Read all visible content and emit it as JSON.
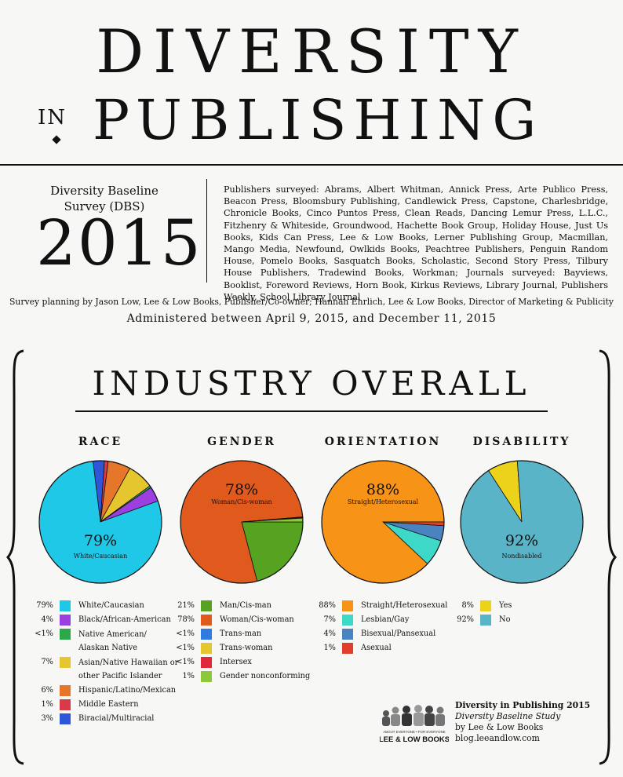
{
  "header": {
    "title_line1": "DIVERSITY",
    "title_in": "IN",
    "title_line2": "PUBLISHING",
    "survey_name": "Diversity Baseline Survey (DBS)",
    "year": "2015",
    "publishers_text": "Publishers surveyed: Abrams, Albert Whitman, Annick Press, Arte Publico Press, Beacon Press, Bloomsbury Publishing, Candlewick Press, Capstone, Charlesbridge, Chronicle Books, Cinco Puntos Press, Clean Reads, Dancing Lemur Press, L.L.C., Fitzhenry & Whiteside, Groundwood, Hachette Book Group, Holiday House, Just Us Books, Kids Can Press, Lee & Low Books, Lerner Publishing Group, Macmillan, Mango Media, Newfound, Owlkids Books, Peachtree Publishers, Penguin Random House, Pomelo Books, Sasquatch Books, Scholastic, Second Story Press, Tilbury House Publishers, Tradewind Books, Workman; Journals surveyed: Bayviews, Booklist, Foreword Reviews, Horn Book, Kirkus Reviews, Library Journal, Publishers Weekly, School Library Journal",
    "planning": "Survey planning by Jason Low, Lee & Low Books, Publisher/Co-owner; Hannah Ehrlich, Lee & Low Books, Director of Marketing & Publicity",
    "administered": "Administered between April 9, 2015, and December 11, 2015"
  },
  "section_title": "INDUSTRY OVERALL",
  "chart_data": [
    {
      "type": "pie",
      "title": "RACE",
      "center_value": "79%",
      "center_label": "White/Caucasian",
      "slices": [
        {
          "label": "White/Caucasian",
          "value": 79,
          "display": "79%",
          "color": "#1ec8e6"
        },
        {
          "label": "Black/African-American",
          "value": 4,
          "display": "4%",
          "color": "#9b3fe0"
        },
        {
          "label": "Native American/ Alaskan Native",
          "value": 0.5,
          "display": "<1%",
          "color": "#2aa84a"
        },
        {
          "label": "Asian/Native Hawaiian or other Pacific Islander",
          "value": 7,
          "display": "7%",
          "color": "#e6c62e"
        },
        {
          "label": "Hispanic/Latino/Mexican",
          "value": 6,
          "display": "6%",
          "color": "#e5762a"
        },
        {
          "label": "Middle Eastern",
          "value": 1,
          "display": "1%",
          "color": "#d83a4a"
        },
        {
          "label": "Biracial/Multiracial",
          "value": 3,
          "display": "3%",
          "color": "#2f56d8"
        }
      ]
    },
    {
      "type": "pie",
      "title": "GENDER",
      "center_value": "78%",
      "center_label": "Woman/Cis-woman",
      "slices": [
        {
          "label": "Man/Cis-man",
          "value": 21,
          "display": "21%",
          "color": "#55a320"
        },
        {
          "label": "Woman/Cis-woman",
          "value": 78,
          "display": "78%",
          "color": "#e05a1e"
        },
        {
          "label": "Trans-man",
          "value": 0.1,
          "display": "<1%",
          "color": "#2f7be0"
        },
        {
          "label": "Trans-woman",
          "value": 0.1,
          "display": "<1%",
          "color": "#e6c62e"
        },
        {
          "label": "Intersex",
          "value": 0.1,
          "display": "<1%",
          "color": "#e0283a"
        },
        {
          "label": "Gender nonconforming",
          "value": 1,
          "display": "1%",
          "color": "#8cc83a"
        }
      ]
    },
    {
      "type": "pie",
      "title": "ORIENTATION",
      "center_value": "88%",
      "center_label": "Straight/Heterosexual",
      "slices": [
        {
          "label": "Straight/Heterosexual",
          "value": 88,
          "display": "88%",
          "color": "#f79418"
        },
        {
          "label": "Lesbian/Gay",
          "value": 7,
          "display": "7%",
          "color": "#3ed8c8"
        },
        {
          "label": "Bisexual/Pansexual",
          "value": 4,
          "display": "4%",
          "color": "#4a84c0"
        },
        {
          "label": "Asexual",
          "value": 1,
          "display": "1%",
          "color": "#e0402a"
        }
      ]
    },
    {
      "type": "pie",
      "title": "DISABILITY",
      "center_value": "92%",
      "center_label": "Nondisabled",
      "slices": [
        {
          "label": "Yes",
          "value": 8,
          "display": "8%",
          "color": "#ecd21a"
        },
        {
          "label": "No",
          "value": 92,
          "display": "92%",
          "color": "#5ab4c8"
        }
      ]
    }
  ],
  "legends": [
    [
      {
        "pct": "79%",
        "label": "White/Caucasian",
        "color": "#1ec8e6"
      },
      {
        "pct": "4%",
        "label": "Black/African-American",
        "color": "#9b3fe0"
      },
      {
        "pct": "<1%",
        "label": "Native American/",
        "label2": "Alaskan Native",
        "color": "#2aa84a"
      },
      {
        "pct": "7%",
        "label": "Asian/Native Hawaiian or",
        "label2": "other Pacific Islander",
        "color": "#e6c62e"
      },
      {
        "pct": "6%",
        "label": "Hispanic/Latino/Mexican",
        "color": "#e5762a"
      },
      {
        "pct": "1%",
        "label": "Middle Eastern",
        "color": "#d83a4a"
      },
      {
        "pct": "3%",
        "label": "Biracial/Multiracial",
        "color": "#2f56d8"
      }
    ],
    [
      {
        "pct": "21%",
        "label": "Man/Cis-man",
        "color": "#55a320"
      },
      {
        "pct": "78%",
        "label": "Woman/Cis-woman",
        "color": "#e05a1e"
      },
      {
        "pct": "<1%",
        "label": "Trans-man",
        "color": "#2f7be0"
      },
      {
        "pct": "<1%",
        "label": "Trans-woman",
        "color": "#e6c62e"
      },
      {
        "pct": "<1%",
        "label": "Intersex",
        "color": "#e0283a"
      },
      {
        "pct": "1%",
        "label": "Gender nonconforming",
        "color": "#8cc83a"
      }
    ],
    [
      {
        "pct": "88%",
        "label": "Straight/Heterosexual",
        "color": "#f79418"
      },
      {
        "pct": "7%",
        "label": "Lesbian/Gay",
        "color": "#3ed8c8"
      },
      {
        "pct": "4%",
        "label": "Bisexual/Pansexual",
        "color": "#4a84c0"
      },
      {
        "pct": "1%",
        "label": "Asexual",
        "color": "#e0402a"
      }
    ],
    [
      {
        "pct": "8%",
        "label": "Yes",
        "color": "#ecd21a"
      },
      {
        "pct": "92%",
        "label": "No",
        "color": "#5ab4c8"
      }
    ]
  ],
  "footer": {
    "logo_tagline": "ABOUT EVERYONE • FOR EVERYONE",
    "logo_name": "LEE & LOW BOOKS",
    "title": "Diversity in Publishing 2015",
    "subtitle": "Diversity Baseline Study",
    "by": "by Lee & Low Books",
    "url": "blog.leeandlow.com"
  }
}
